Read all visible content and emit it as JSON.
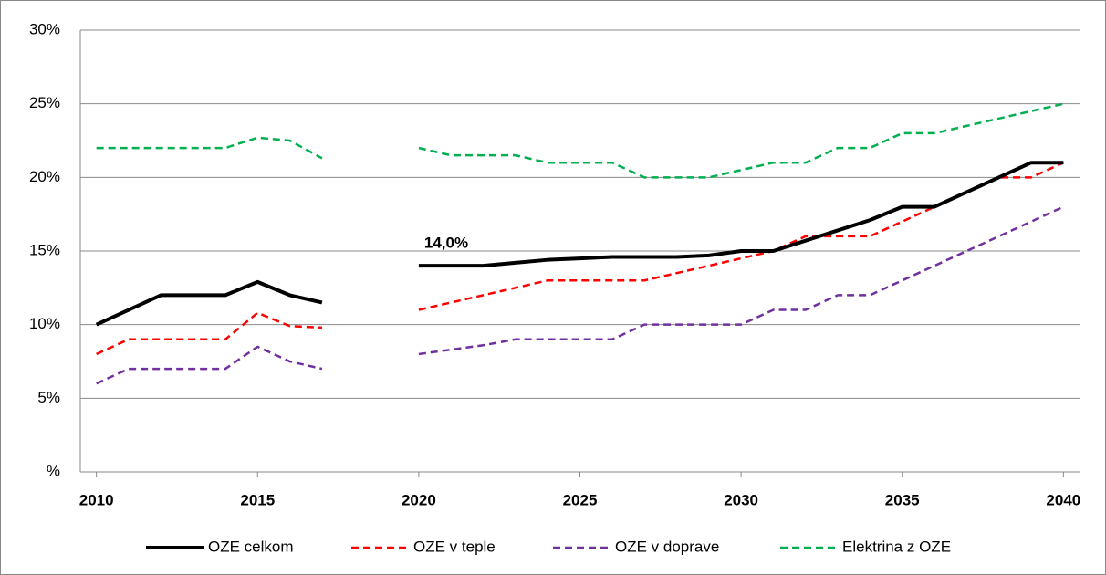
{
  "chart_data": {
    "type": "line",
    "categories": [
      "2010",
      null,
      null,
      null,
      null,
      "2015",
      null,
      null,
      null,
      null,
      "2020",
      null,
      null,
      null,
      null,
      "2025",
      null,
      null,
      null,
      null,
      "2030",
      null,
      null,
      null,
      null,
      "2035",
      null,
      null,
      null,
      null,
      "2040"
    ],
    "series": [
      {
        "name": "OZE celkom",
        "color": "#000000",
        "dashed": false,
        "values": [
          10,
          11,
          12,
          12,
          12,
          12.9,
          12,
          11.5,
          null,
          null,
          14.0,
          14.0,
          14.0,
          14.2,
          14.4,
          14.5,
          14.6,
          14.6,
          14.6,
          14.7,
          15,
          15,
          15.7,
          16.4,
          17.1,
          18,
          18,
          19,
          20,
          21,
          21
        ],
        "value_labels": [
          null,
          null,
          null,
          null,
          null,
          null,
          null,
          null,
          null,
          null,
          "14,0%",
          null,
          null,
          null,
          null,
          null,
          null,
          null,
          null,
          null,
          null,
          null,
          null,
          null,
          null,
          null,
          null,
          null,
          null,
          null,
          null
        ]
      },
      {
        "name": "OZE v teple",
        "color": "#ff0000",
        "dashed": true,
        "values": [
          8,
          9,
          9,
          9,
          9,
          10.8,
          9.9,
          9.8,
          null,
          null,
          11,
          11.5,
          12,
          12.5,
          13,
          13,
          13,
          13,
          13.5,
          14,
          14.5,
          15,
          16,
          16,
          16,
          17,
          18,
          19,
          20,
          20,
          21
        ]
      },
      {
        "name": "OZE v doprave",
        "color": "#7030a0",
        "dashed": true,
        "values": [
          6,
          7,
          7,
          7,
          7,
          8.5,
          7.5,
          7,
          null,
          null,
          8,
          8.3,
          8.6,
          9,
          9,
          9,
          9,
          10,
          10,
          10,
          10,
          11,
          11,
          12,
          12,
          13,
          14,
          15,
          16,
          17,
          18
        ]
      },
      {
        "name": "Elektrina z OZE",
        "color": "#00b050",
        "dashed": true,
        "values": [
          22,
          22,
          22,
          22,
          22,
          22.7,
          22.5,
          21.3,
          null,
          null,
          22,
          21.5,
          21.5,
          21.5,
          21,
          21,
          21,
          20,
          20,
          20,
          20.5,
          21,
          21,
          22,
          22,
          23,
          23,
          23.5,
          24,
          24.5,
          25
        ]
      }
    ],
    "ylim": [
      0,
      30
    ],
    "yticks": [
      {
        "value": 0,
        "label": "%"
      },
      {
        "value": 5,
        "label": "5%"
      },
      {
        "value": 10,
        "label": "10%"
      },
      {
        "value": 15,
        "label": "15%"
      },
      {
        "value": 20,
        "label": "20%"
      },
      {
        "value": 25,
        "label": "25%"
      },
      {
        "value": 30,
        "label": "30%"
      }
    ],
    "grid": true,
    "legend": "bottom"
  }
}
